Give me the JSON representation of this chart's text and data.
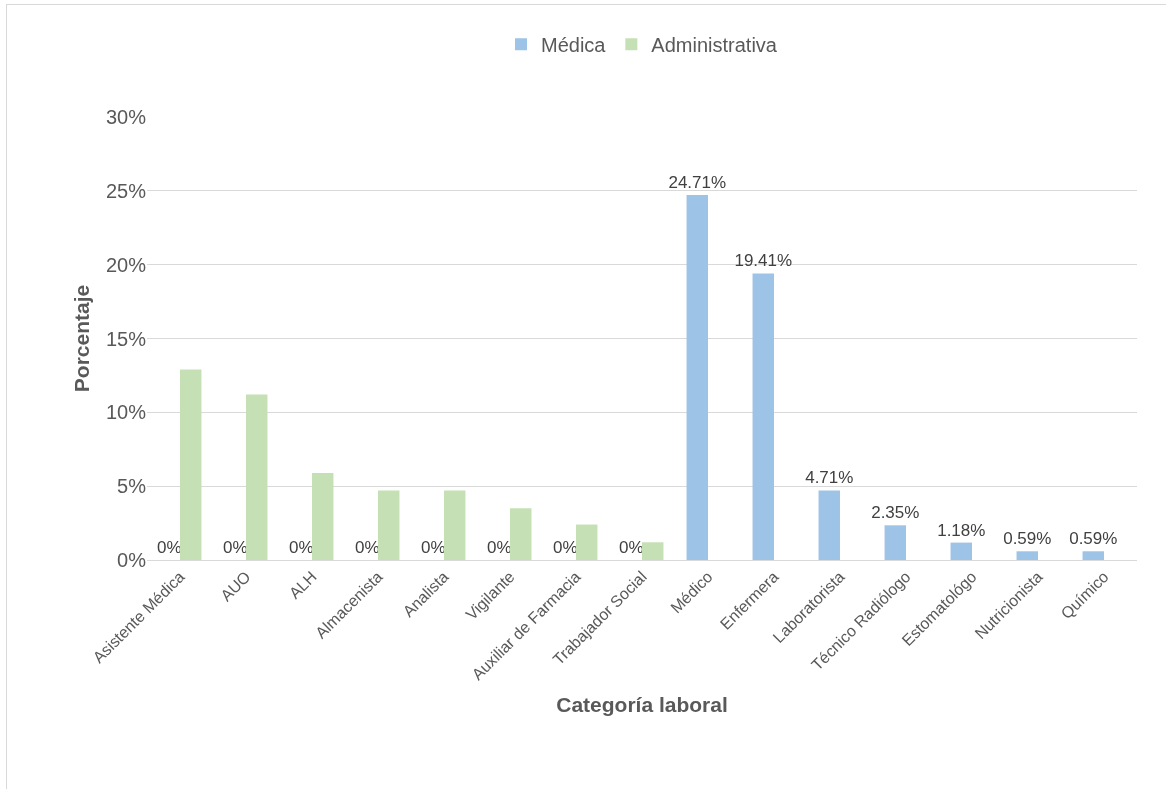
{
  "chart_data": {
    "type": "bar",
    "xlabel": "Categoría laboral",
    "ylabel": "Porcentaje",
    "categories": [
      "Asistente Médica",
      "AUO",
      "ALH",
      "Almacenista",
      "Analista",
      "Vigilante",
      "Auxiliar de Farmacia",
      "Trabajador Social",
      "Médico",
      "Enfermera",
      "Laboratorista",
      "Técnico Radiólogo",
      "Estomatológo",
      "Nutricionista",
      "Químico"
    ],
    "series": [
      {
        "name": "Médica",
        "color": "#9dc3e6",
        "values": [
          0,
          0,
          0,
          0,
          0,
          0,
          0,
          0,
          24.71,
          19.41,
          4.71,
          2.35,
          1.18,
          0.59,
          0.59
        ],
        "value_labels": [
          "0%",
          "0%",
          "0%",
          "0%",
          "0%",
          "0%",
          "0%",
          "0%",
          "24.71%",
          "19.41%",
          "4.71%",
          "2.35%",
          "1.18%",
          "0.59%",
          "0.59%"
        ]
      },
      {
        "name": "Administrativa",
        "color": "#c5e0b4",
        "values": [
          12.9,
          11.2,
          5.9,
          4.7,
          4.7,
          3.5,
          2.4,
          1.2,
          null,
          null,
          null,
          null,
          null,
          null,
          null
        ]
      }
    ],
    "ylim": [
      0,
      30
    ],
    "yticks": [
      {
        "value": 0,
        "label": "0%"
      },
      {
        "value": 5,
        "label": "5%"
      },
      {
        "value": 10,
        "label": "10%"
      },
      {
        "value": 15,
        "label": "15%"
      },
      {
        "value": 20,
        "label": "20%"
      },
      {
        "value": 25,
        "label": "25%"
      },
      {
        "value": 30,
        "label": "30%"
      }
    ],
    "grid": "y",
    "legend": "top"
  }
}
